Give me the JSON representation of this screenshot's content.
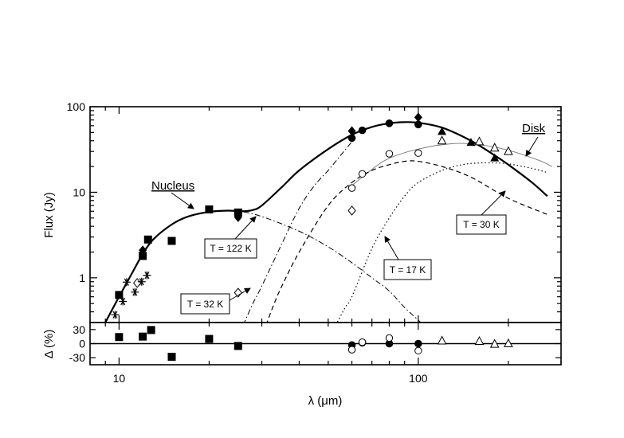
{
  "chart_data": {
    "type": "scatter",
    "title": "",
    "xlabel": "λ (μm)",
    "x_scale": "log",
    "xlim": [
      8,
      300
    ],
    "x_ticks": [
      10,
      100
    ],
    "x_tick_labels": [
      "10",
      "100"
    ],
    "main_panel": {
      "ylabel": "Flux (Jy)",
      "y_scale": "log",
      "ylim": [
        0.3,
        100
      ],
      "y_ticks": [
        1,
        10,
        100
      ],
      "y_tick_labels": [
        "1",
        "10",
        "100"
      ],
      "annotations": {
        "nucleus": "Nucleus",
        "disk": "Disk",
        "t122": "T = 122 K",
        "t32": "T = 32 K",
        "t17": "T = 17 K",
        "t30": "T = 30 K"
      },
      "series": [
        {
          "marker": "filled-square",
          "points": [
            [
              10,
              0.63
            ],
            [
              12,
              1.8
            ],
            [
              12.5,
              2.8
            ],
            [
              15,
              2.7
            ],
            [
              20,
              6.3
            ],
            [
              25,
              5.8
            ]
          ]
        },
        {
          "marker": "filled-diamond",
          "points": [
            [
              12,
              2.1
            ],
            [
              25,
              5.1
            ],
            [
              60,
              52
            ],
            [
              100,
              75
            ]
          ]
        },
        {
          "marker": "open-diamond",
          "points": [
            [
              11.5,
              0.87
            ],
            [
              25,
              0.67
            ],
            [
              60,
              6.1
            ]
          ]
        },
        {
          "marker": "asterisk",
          "points": [
            [
              9.7,
              0.37
            ],
            [
              10.3,
              0.53
            ],
            [
              10.6,
              0.89
            ],
            [
              11.3,
              0.68
            ],
            [
              11.9,
              0.9
            ],
            [
              12.4,
              1.07
            ]
          ]
        },
        {
          "marker": "filled-circle",
          "points": [
            [
              60,
              43
            ],
            [
              65,
              53
            ],
            [
              80,
              64
            ],
            [
              100,
              62
            ]
          ]
        },
        {
          "marker": "open-circle",
          "points": [
            [
              60,
              11.2
            ],
            [
              65,
              16.4
            ],
            [
              80,
              28.2
            ],
            [
              100,
              28.7
            ]
          ]
        },
        {
          "marker": "filled-triangle",
          "points": [
            [
              120,
              51
            ],
            [
              150,
              38
            ],
            [
              180,
              25
            ]
          ]
        },
        {
          "marker": "open-triangle",
          "points": [
            [
              120,
              40
            ],
            [
              160,
              39
            ],
            [
              180,
              33
            ],
            [
              200,
              30
            ]
          ]
        }
      ],
      "curves": [
        {
          "name": "Nucleus",
          "style": "solid-thick",
          "points": [
            [
              8.5,
              0.2
            ],
            [
              9,
              0.3
            ],
            [
              10,
              0.6
            ],
            [
              11,
              1.1
            ],
            [
              12,
              1.9
            ],
            [
              13,
              2.8
            ],
            [
              15,
              4.2
            ],
            [
              17,
              5.2
            ],
            [
              20,
              5.9
            ],
            [
              23,
              6.1
            ],
            [
              26,
              6.0
            ],
            [
              28,
              6.2
            ],
            [
              30,
              7.0
            ],
            [
              35,
              11.5
            ],
            [
              40,
              18
            ],
            [
              50,
              32
            ],
            [
              60,
              47
            ],
            [
              70,
              58
            ],
            [
              80,
              64
            ],
            [
              90,
              66
            ],
            [
              100,
              65
            ],
            [
              120,
              57
            ],
            [
              150,
              40
            ],
            [
              180,
              27
            ],
            [
              200,
              21
            ],
            [
              240,
              13
            ],
            [
              270,
              9
            ]
          ]
        },
        {
          "name": "Disk",
          "style": "solid-thin",
          "points": [
            [
              60,
              12
            ],
            [
              70,
              18.5
            ],
            [
              80,
              25
            ],
            [
              100,
              32
            ],
            [
              130,
              37
            ],
            [
              160,
              36
            ],
            [
              200,
              31
            ],
            [
              250,
              24
            ],
            [
              280,
              20
            ]
          ]
        },
        {
          "name": "T = 122 K",
          "style": "dash-dot",
          "points": [
            [
              20,
              6
            ],
            [
              25,
              6
            ],
            [
              30,
              5.2
            ],
            [
              40,
              3.5
            ],
            [
              50,
              2.3
            ],
            [
              60,
              1.5
            ],
            [
              70,
              1.0
            ],
            [
              80,
              0.7
            ],
            [
              90,
              0.45
            ],
            [
              100,
              0.32
            ],
            [
              104,
              0.28
            ]
          ]
        },
        {
          "name": "T = 32 K",
          "style": "dash-dot",
          "points": [
            [
              26,
              0.28
            ],
            [
              28,
              0.5
            ],
            [
              30,
              0.8
            ],
            [
              35,
              2.5
            ],
            [
              40,
              6.5
            ],
            [
              45,
              12
            ],
            [
              50,
              18
            ],
            [
              55,
              27
            ],
            [
              60,
              39
            ]
          ]
        },
        {
          "name": "T = 17 K",
          "style": "dashed",
          "points": [
            [
              31,
              0.28
            ],
            [
              33,
              0.5
            ],
            [
              35,
              0.8
            ],
            [
              40,
              2.0
            ],
            [
              50,
              7
            ],
            [
              60,
              13
            ],
            [
              70,
              18
            ],
            [
              80,
              21
            ],
            [
              90,
              23
            ],
            [
              100,
              23
            ],
            [
              120,
              20
            ],
            [
              150,
              15
            ],
            [
              200,
              8.5
            ],
            [
              270,
              5.5
            ]
          ]
        },
        {
          "name": "T = 30 K",
          "style": "dotted",
          "points": [
            [
              53,
              0.28
            ],
            [
              57,
              0.45
            ],
            [
              60,
              0.6
            ],
            [
              70,
              2.2
            ],
            [
              80,
              5
            ],
            [
              90,
              9
            ],
            [
              100,
              13
            ],
            [
              120,
              18
            ],
            [
              140,
              21
            ],
            [
              160,
              22
            ],
            [
              180,
              22
            ],
            [
              200,
              21.5
            ],
            [
              240,
              19
            ],
            [
              270,
              17
            ]
          ]
        }
      ]
    },
    "residual_panel": {
      "ylabel": "Δ  (%)",
      "ylim": [
        -45,
        45
      ],
      "y_ticks": [
        -30,
        0,
        30
      ],
      "y_tick_labels": [
        "-30",
        "0",
        "30"
      ],
      "zero_line": true,
      "series": [
        {
          "marker": "filled-square",
          "points": [
            [
              10,
              14
            ],
            [
              12,
              15
            ],
            [
              12.8,
              29
            ],
            [
              15,
              -28
            ],
            [
              20,
              10
            ],
            [
              25,
              -5
            ]
          ]
        },
        {
          "marker": "filled-circle",
          "points": [
            [
              60,
              -3
            ],
            [
              65,
              2
            ],
            [
              80,
              0
            ],
            [
              100,
              0
            ]
          ]
        },
        {
          "marker": "open-circle",
          "points": [
            [
              60,
              -13
            ],
            [
              65,
              3
            ],
            [
              80,
              12
            ],
            [
              100,
              -15
            ]
          ]
        },
        {
          "marker": "open-triangle",
          "points": [
            [
              120,
              6
            ],
            [
              160,
              5
            ],
            [
              180,
              -1
            ],
            [
              200,
              0
            ]
          ]
        }
      ]
    }
  }
}
